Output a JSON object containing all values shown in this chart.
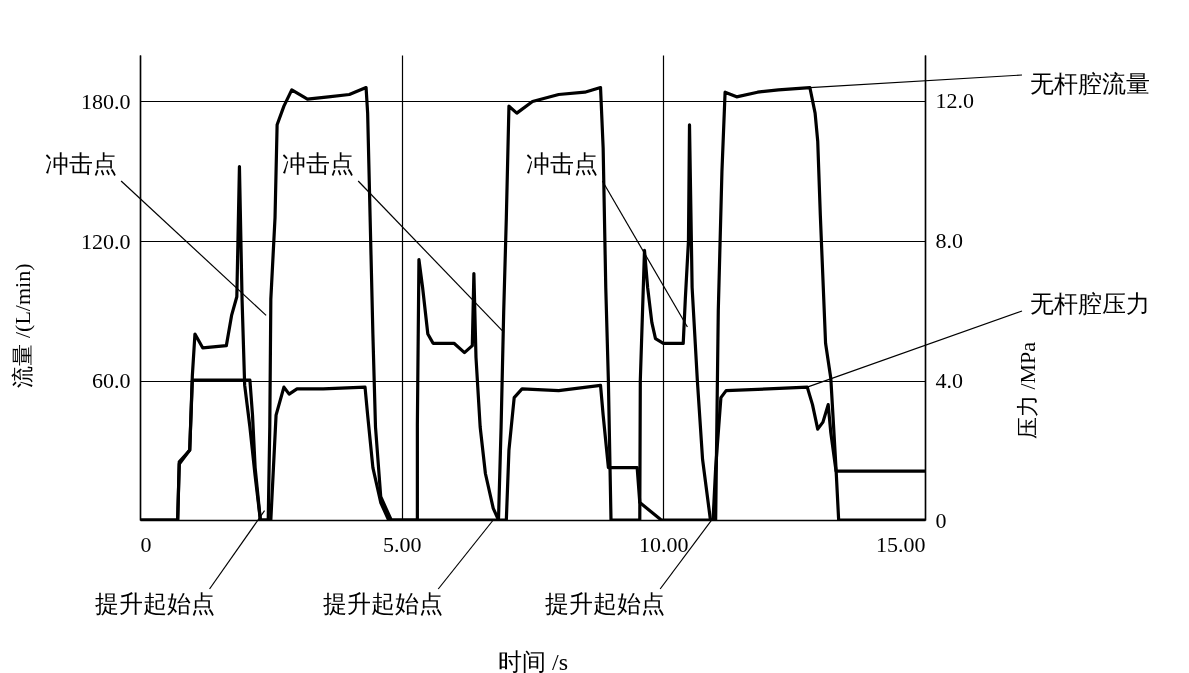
{
  "chart_data": {
    "type": "line",
    "xlabel": "时间 /s",
    "ylabel": "流量 /(L/min)",
    "y2label": "压力 /MPa",
    "xlim": [
      0,
      15
    ],
    "xticks": [
      0,
      {
        "value": 5,
        "label": "5.00"
      },
      {
        "value": 10,
        "label": "10.00"
      },
      {
        "value": 15,
        "label": "15.00"
      }
    ],
    "ylim": [
      0,
      200
    ],
    "yticks": [
      {
        "value": 60,
        "label": "60.0"
      },
      {
        "value": 120,
        "label": "120.0"
      },
      {
        "value": 180,
        "label": "180.0"
      }
    ],
    "y2lim": [
      0,
      13.3
    ],
    "y2ticks": [
      0,
      {
        "value": 4,
        "label": "4.0"
      },
      {
        "value": 8,
        "label": "8.0"
      },
      {
        "value": 12,
        "label": "12.0"
      }
    ],
    "grid": true,
    "line_style": "solid",
    "series": [
      {
        "name": "无杆腔流量",
        "color": "#000000",
        "x": [
          0,
          0.72,
          0.75,
          0.95,
          1.0,
          1.05,
          1.2,
          1.65,
          1.75,
          1.85,
          1.9,
          1.95,
          2.0,
          2.1,
          2.2,
          2.3,
          2.45,
          2.48,
          2.5,
          2.58,
          2.62,
          2.75,
          2.9,
          3.2,
          3.6,
          4.0,
          4.32,
          4.35,
          4.45,
          4.5,
          4.6,
          4.8,
          5.3,
          5.3,
          5.33,
          5.4,
          5.5,
          5.6,
          6.0,
          6.2,
          6.35,
          6.38,
          6.42,
          6.5,
          6.6,
          6.75,
          6.85,
          6.9,
          6.95,
          7.0,
          7.05,
          7.2,
          7.5,
          8.0,
          8.5,
          8.8,
          8.85,
          8.9,
          8.95,
          9.0,
          9.55,
          9.56,
          9.64,
          9.7,
          9.78,
          9.85,
          10.0,
          10.38,
          10.42,
          10.48,
          10.5,
          10.55,
          10.65,
          10.75,
          10.9,
          11.0,
          11.05,
          11.12,
          11.18,
          11.4,
          11.8,
          12.2,
          12.8,
          12.9,
          12.95,
          13.0,
          13.1,
          13.2,
          13.3,
          13.35,
          15
        ],
        "values": [
          0,
          0,
          25,
          30,
          62,
          80,
          74,
          75,
          88,
          96,
          152,
          95,
          58,
          40,
          19,
          0,
          0,
          40,
          95,
          130,
          170,
          178,
          185,
          181,
          182,
          183,
          186,
          175,
          80,
          40,
          10,
          0,
          0,
          41,
          112,
          100,
          80,
          76,
          76,
          72,
          75,
          106,
          70,
          40,
          20,
          5,
          0,
          40,
          90,
          130,
          178,
          175,
          180,
          183,
          184,
          186,
          160,
          100,
          60,
          0,
          0,
          60,
          116,
          100,
          85,
          78,
          76,
          76,
          95,
          120,
          170,
          100,
          60,
          26,
          0,
          0,
          90,
          150,
          184,
          182,
          184,
          185,
          186,
          175,
          163,
          131,
          76,
          61,
          22,
          0,
          0
        ]
      },
      {
        "name": "无杆腔压力",
        "color": "#000000",
        "axis": "y2",
        "x": [
          0,
          0.72,
          0.75,
          0.95,
          1.0,
          2.1,
          2.15,
          2.2,
          2.3,
          2.5,
          2.55,
          2.6,
          2.75,
          2.85,
          3.0,
          3.5,
          4.3,
          4.35,
          4.45,
          4.6,
          4.75,
          7.0,
          7.05,
          7.15,
          7.3,
          8.0,
          8.8,
          8.85,
          8.95,
          9.5,
          9.55,
          9.96,
          10.95,
          11.0,
          11.1,
          11.2,
          12.0,
          12.75,
          12.85,
          12.95,
          13.05,
          13.15,
          13.2,
          13.3,
          15
        ],
        "values": [
          0,
          0,
          1.6,
          2.0,
          4.0,
          4.0,
          3.0,
          1.5,
          0,
          0,
          1.5,
          3.0,
          3.8,
          3.6,
          3.75,
          3.75,
          3.8,
          3.0,
          1.5,
          0.5,
          0,
          0,
          2.0,
          3.5,
          3.75,
          3.7,
          3.85,
          3.0,
          1.5,
          1.5,
          0.5,
          0,
          0,
          1.5,
          3.5,
          3.7,
          3.75,
          3.8,
          3.3,
          2.6,
          2.8,
          3.3,
          2.5,
          1.4,
          1.4
        ]
      }
    ],
    "annotations": [
      {
        "text": "冲击点",
        "x": 2.41,
        "y": 88
      },
      {
        "text": "冲击点",
        "x": 6.94,
        "y": 81
      },
      {
        "text": "冲击点",
        "x": 10.46,
        "y": 83
      },
      {
        "text": "提升起始点",
        "x": 2.38,
        "y": 4
      },
      {
        "text": "提升起始点",
        "x": 6.75,
        "y": 0
      },
      {
        "text": "提升起始点",
        "x": 10.99,
        "y": 2
      }
    ]
  }
}
